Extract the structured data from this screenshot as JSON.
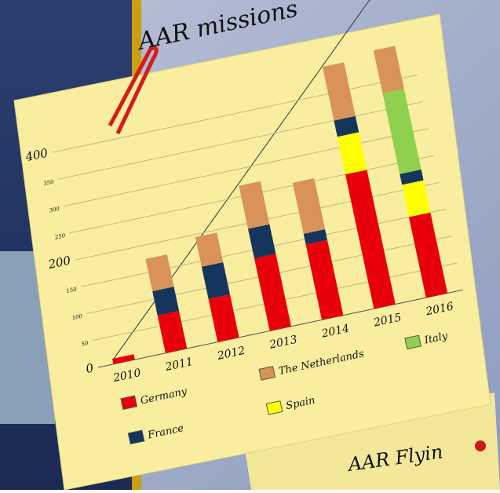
{
  "chart_data": {
    "type": "stacked-bar",
    "title": "AAR missions",
    "categories": [
      "2010",
      "2011",
      "2012",
      "2013",
      "2014",
      "2015",
      "2016"
    ],
    "series": [
      {
        "name": "Germany",
        "color": "#e8000b",
        "values": [
          10,
          70,
          80,
          135,
          140,
          250,
          150
        ]
      },
      {
        "name": "Spain",
        "color": "#ffff00",
        "values": [
          0,
          0,
          0,
          0,
          0,
          70,
          60
        ]
      },
      {
        "name": "France",
        "color": "#16355c",
        "values": [
          0,
          45,
          60,
          55,
          20,
          30,
          20
        ]
      },
      {
        "name": "Italy",
        "color": "#8fd14f",
        "values": [
          0,
          0,
          0,
          0,
          0,
          0,
          150
        ]
      },
      {
        "name": "The Netherlands",
        "color": "#d99358",
        "values": [
          0,
          60,
          55,
          80,
          95,
          100,
          80
        ]
      }
    ],
    "ylim": [
      0,
      500
    ],
    "yticks": [
      0,
      50,
      100,
      150,
      200,
      250,
      300,
      350,
      400
    ],
    "grid": true
  },
  "second_note": "AAR Flyin"
}
